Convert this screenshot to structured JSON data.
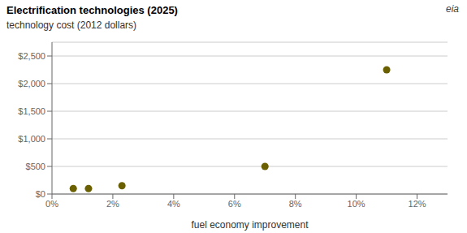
{
  "chart_data": {
    "type": "scatter",
    "title": "Electrification technologies (2025)",
    "subtitle": "technology cost (2012  dollars)",
    "x_label": "fuel economy improvement",
    "annotations": [
      "eia"
    ],
    "color": "#6b6000",
    "x": [
      0.007,
      0.012,
      0.023,
      0.07,
      0.11
    ],
    "values": [
      100,
      100,
      150,
      500,
      2250
    ],
    "xlim": [
      0,
      0.13
    ],
    "ylim": [
      0,
      2750
    ],
    "xticks": [
      {
        "value": 0.0,
        "label": "0%"
      },
      {
        "value": 0.02,
        "label": "2%"
      },
      {
        "value": 0.04,
        "label": "4%"
      },
      {
        "value": 0.06,
        "label": "6%"
      },
      {
        "value": 0.08,
        "label": "8%"
      },
      {
        "value": 0.1,
        "label": "10%"
      },
      {
        "value": 0.12,
        "label": "12%"
      }
    ],
    "yticks": [
      {
        "value": 0,
        "label": "$0"
      },
      {
        "value": 500,
        "label": "$500"
      },
      {
        "value": 1000,
        "label": "$1,000"
      },
      {
        "value": 1500,
        "label": "$1,500"
      },
      {
        "value": 2000,
        "label": "$2,000"
      },
      {
        "value": 2500,
        "label": "$2,500"
      }
    ],
    "grid": "y"
  }
}
